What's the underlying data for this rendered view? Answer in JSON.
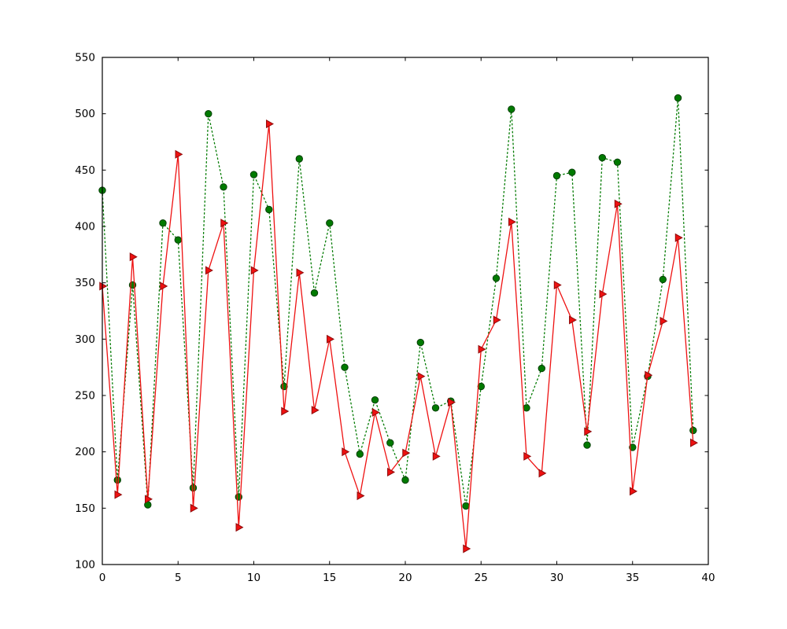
{
  "chart_data": {
    "type": "line",
    "title": "",
    "xlabel": "",
    "ylabel": "",
    "grid": false,
    "legend": null,
    "background": "#ffffff",
    "frame_color": "#000000",
    "xlim": [
      0,
      40
    ],
    "ylim": [
      100,
      550
    ],
    "xticks": [
      0,
      5,
      10,
      15,
      20,
      25,
      30,
      35,
      40
    ],
    "yticks": [
      100,
      150,
      200,
      250,
      300,
      350,
      400,
      450,
      500,
      550
    ],
    "x": [
      0,
      1,
      2,
      3,
      4,
      5,
      6,
      7,
      8,
      9,
      10,
      11,
      12,
      13,
      14,
      15,
      16,
      17,
      18,
      19,
      20,
      21,
      22,
      23,
      24,
      25,
      26,
      27,
      28,
      29,
      30,
      31,
      32,
      33,
      34,
      35,
      36,
      37,
      38,
      39
    ],
    "series": [
      {
        "name": "green-dotted-circles",
        "color": "#007a00",
        "marker_edge": "#063f06",
        "line_style": "dotted",
        "marker": "circle",
        "values": [
          432,
          175,
          348,
          153,
          403,
          388,
          168,
          500,
          435,
          160,
          446,
          415,
          258,
          460,
          341,
          403,
          275,
          198,
          246,
          208,
          175,
          297,
          239,
          245,
          152,
          258,
          354,
          504,
          239,
          274,
          445,
          448,
          206,
          461,
          457,
          204,
          267,
          353,
          514,
          219
        ]
      },
      {
        "name": "red-solid-triangles",
        "color": "#ee1111",
        "marker_edge": "#8f0b0b",
        "line_style": "solid",
        "marker": "triangle-right",
        "values": [
          347,
          162,
          373,
          158,
          347,
          464,
          150,
          361,
          403,
          133,
          361,
          491,
          236,
          359,
          237,
          300,
          200,
          161,
          235,
          182,
          199,
          267,
          196,
          244,
          114,
          291,
          317,
          404,
          196,
          181,
          348,
          317,
          218,
          340,
          420,
          165,
          268,
          316,
          390,
          208
        ]
      }
    ]
  },
  "layout_labels": {
    "figure_name": "line chart figure"
  }
}
